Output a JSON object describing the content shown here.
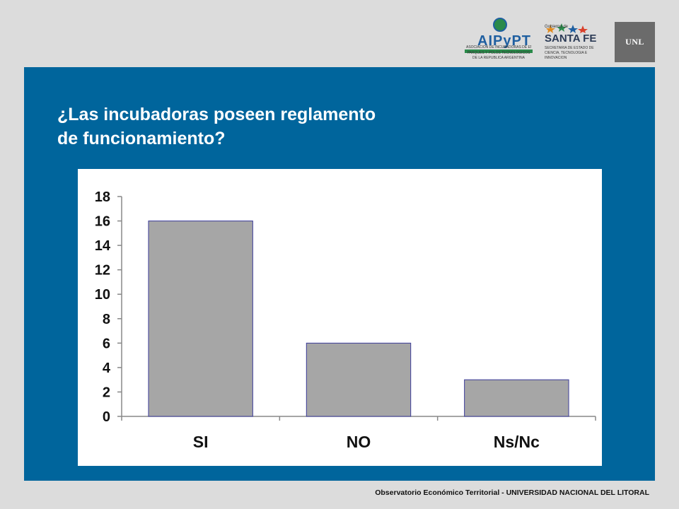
{
  "slide": {
    "title_line1": "¿Las incubadoras poseen reglamento",
    "title_line2": "de funcionamiento?",
    "footer": "Observatorio Económico Territorial - UNIVERSIDAD NACIONAL DEL LITORAL"
  },
  "logos": {
    "aipypt": {
      "word": "AIPyPT",
      "line1": "ASOCIACION DE INCUBADORAS DE EMPRESAS",
      "line2": "PARQUES Y POLOS TECNOLOGICOS",
      "line3": "DE LA REPUBLICA ARGENTINA"
    },
    "santafe": {
      "gobierno": "Gobierno de",
      "name": "SANTA FE",
      "secretaria": "SECRETARIA DE ESTADO DE CIENCIA, TECNOLOGIA E INNOVACION"
    },
    "unl": {
      "text": "UNL"
    }
  },
  "colors": {
    "panel": "#00659c",
    "background": "#dcdcdc",
    "bar_fill": "#a6a6a6",
    "bar_stroke": "#3b3b9a"
  },
  "chart_data": {
    "type": "bar",
    "categories": [
      "SI",
      "NO",
      "Ns/Nc"
    ],
    "values": [
      16,
      6,
      3
    ],
    "ylim": [
      0,
      18
    ],
    "yticks": [
      "0",
      "2",
      "4",
      "6",
      "8",
      "10",
      "12",
      "14",
      "16",
      "18"
    ],
    "grid": false
  }
}
